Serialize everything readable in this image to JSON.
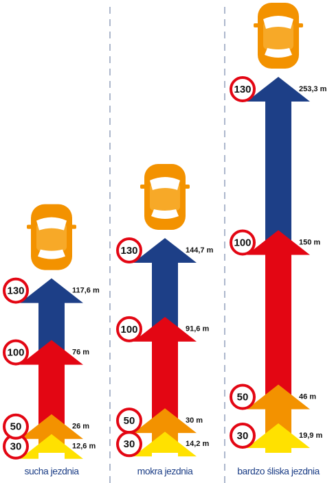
{
  "chart_data": {
    "type": "arrow",
    "categories": [
      "sucha jezdnia",
      "mokra jezdnia",
      "bardzo śliska jezdnia"
    ],
    "series": [
      {
        "name": "30",
        "color": "#ffe100",
        "values": [
          12.6,
          14.2,
          19.9
        ],
        "value_labels": [
          "12,6 m",
          "14,2 m",
          "19,9 m"
        ]
      },
      {
        "name": "50",
        "color": "#f39200",
        "values": [
          26,
          30,
          46
        ],
        "value_labels": [
          "26 m",
          "30 m",
          "46 m"
        ]
      },
      {
        "name": "100",
        "color": "#e30613",
        "values": [
          76,
          91.6,
          150
        ],
        "value_labels": [
          "76 m",
          "91,6 m",
          "150 m"
        ]
      },
      {
        "name": "130",
        "color": "#1d3f87",
        "values": [
          117.6,
          144.7,
          253.3
        ],
        "value_labels": [
          "117,6 m",
          "144,7 m",
          "253,3 m"
        ]
      }
    ]
  }
}
